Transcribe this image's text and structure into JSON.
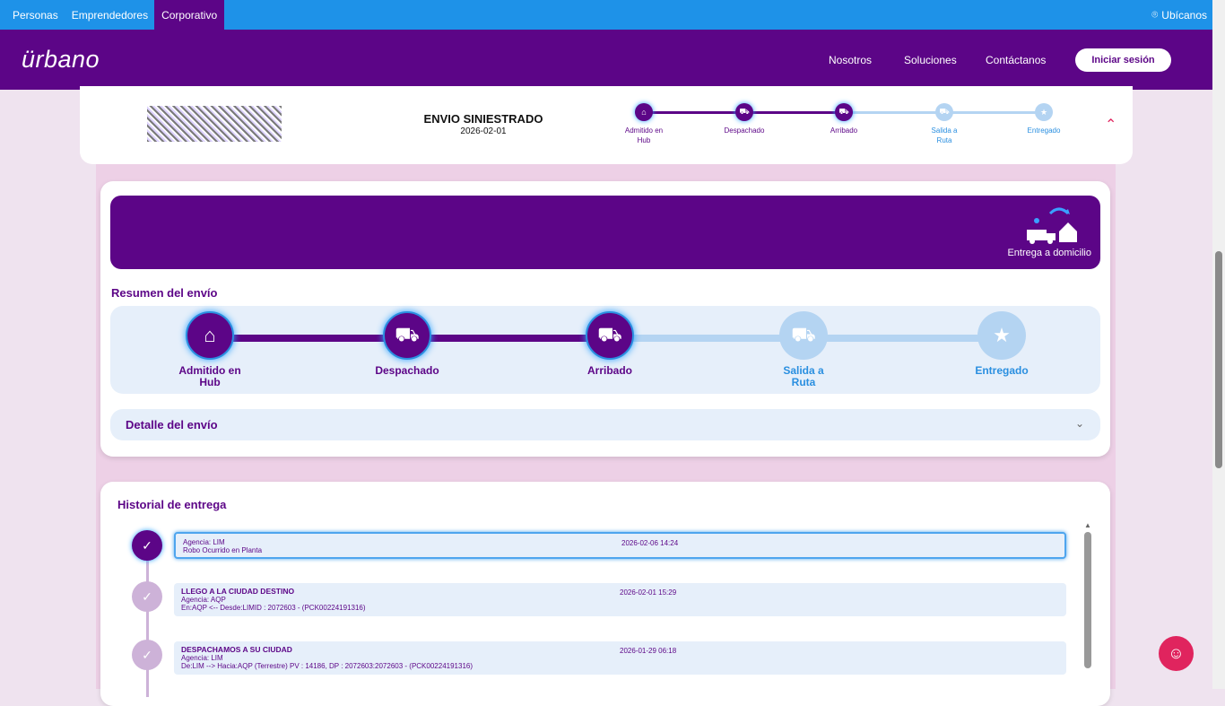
{
  "topbar": {
    "tabs": [
      "Personas",
      "Emprendedores",
      "Corporativo"
    ],
    "active": "Corporativo",
    "location": "Ubícanos"
  },
  "header": {
    "logo": "ürbano",
    "nav": [
      "Nosotros",
      "Soluciones",
      "Contáctanos"
    ],
    "login": "Iniciar sesión"
  },
  "summary": {
    "status": "ENVIO SINIESTRADO",
    "date": "2026-02-01"
  },
  "steps": [
    {
      "label1": "Admitido en",
      "label2": "Hub",
      "done": true,
      "icon": "warehouse-icon"
    },
    {
      "label1": "Despachado",
      "label2": "",
      "done": true,
      "icon": "truck-dispatch-icon"
    },
    {
      "label1": "Arribado",
      "label2": "",
      "done": true,
      "icon": "truck-arrived-icon"
    },
    {
      "label1": "Salida a",
      "label2": "Ruta",
      "done": false,
      "icon": "truck-icon"
    },
    {
      "label1": "Entregado",
      "label2": "",
      "done": false,
      "icon": "star-icon"
    }
  ],
  "banner": {
    "label": "Entrega a domicilio"
  },
  "resumen_title": "Resumen del envío",
  "detail_title": "Detalle del envío",
  "history": {
    "title": "Historial de entrega",
    "items": [
      {
        "title": "",
        "agency": "Agencia: LIM",
        "desc": "Robo Ocurrido en Planta",
        "date": "2026-02-06 14:24"
      },
      {
        "title": "LLEGO A LA CIUDAD DESTINO",
        "agency": "Agencia: AQP",
        "desc": "En:AQP <-- Desde:LIMID : 2072603 - (PCK00224191316)",
        "date": "2026-02-01 15:29"
      },
      {
        "title": "DESPACHAMOS A SU CIUDAD",
        "agency": "Agencia: LIM",
        "desc": "De:LIM --> Hacia:AQP (Terrestre) PV : 14186, DP : 2072603:2072603 - (PCK00224191316)",
        "date": "2026-01-29 06:18"
      }
    ]
  },
  "colors": {
    "brand": "#5c0587",
    "topbar": "#1e92e8",
    "accent": "#e0245e"
  }
}
